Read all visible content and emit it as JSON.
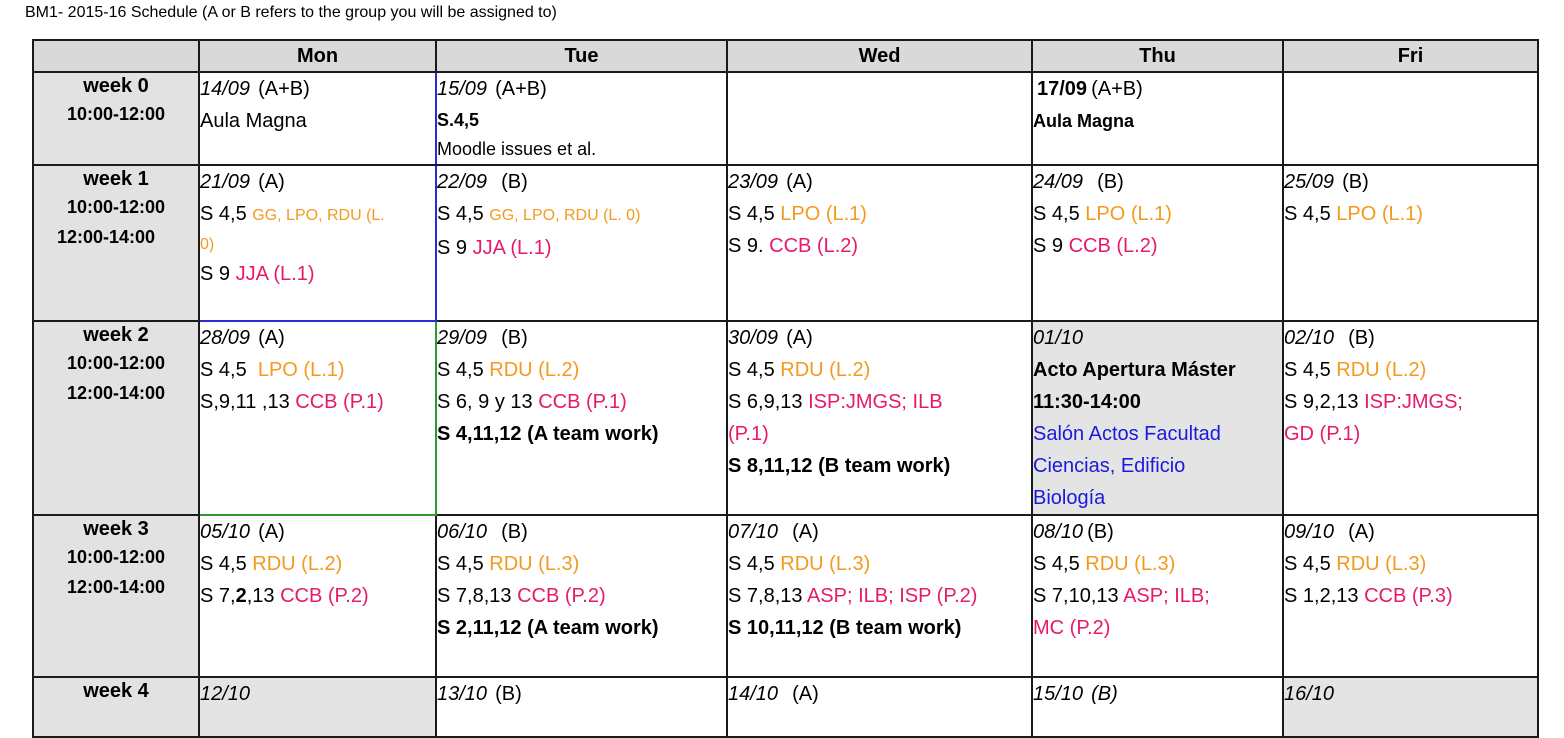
{
  "title": "BM1- 2015-16 Schedule (A or B refers to the group you will be assigned to)",
  "days": [
    "Mon",
    "Tue",
    "Wed",
    "Thu",
    "Fri"
  ],
  "weeks": [
    {
      "label": "week 0",
      "times": [
        "10:00-12:00"
      ],
      "mon": {
        "date": "14/09",
        "group": "(A+B)",
        "place": "Aula Magna"
      },
      "tue": {
        "date": "15/09",
        "group": "(A+B)",
        "room": "S.4,5",
        "note": "Moodle issues et al."
      },
      "thu": {
        "date": "17/09",
        "group": "(A+B)",
        "place": "Aula Magna"
      }
    },
    {
      "label": "week 1",
      "times": [
        "10:00-12:00",
        "12:00-14:00"
      ],
      "mon": {
        "date": "21/09",
        "group": "(A)",
        "r1": "S 4,5",
        "l1": "GG, LPO, RDU (L.",
        "l1b": "0)",
        "r2": "S 9",
        "l2": "JJA (L.1)"
      },
      "tue": {
        "date": "22/09",
        "group": "(B)",
        "r1": "S 4,5",
        "l1": "GG, LPO, RDU (L. 0)",
        "r2": "S 9",
        "l2": "JJA (L.1)"
      },
      "wed": {
        "date": "23/09",
        "group": "(A)",
        "r1": "S 4,5",
        "l1": "LPO (L.1)",
        "r2": "S 9.",
        "l2": "CCB (L.2)"
      },
      "thu": {
        "date": "24/09",
        "group": "(B)",
        "r1": "S 4,5",
        "l1": "LPO (L.1)",
        "r2": "S 9",
        "l2": "CCB (L.2)"
      },
      "fri": {
        "date": "25/09",
        "group": "(B)",
        "r1": "S 4,5",
        "l1": "LPO (L.1)"
      }
    },
    {
      "label": "week 2",
      "times": [
        "10:00-12:00",
        "12:00-14:00"
      ],
      "mon": {
        "date": "28/09",
        "group": "(A)",
        "r1": "S 4,5",
        "l1": "LPO (L.1)",
        "r2": "S,9,11 ,13",
        "l2": "CCB (P.1)"
      },
      "tue": {
        "date": "29/09",
        "group": "(B)",
        "r1": "S 4,5",
        "l1": "RDU (L.2)",
        "r2": "S 6, 9 y 13",
        "l2": "CCB (P.1)",
        "team": "S 4,11,12 (A team work)"
      },
      "wed": {
        "date": "30/09",
        "group": "(A)",
        "r1": "S 4,5",
        "l1": "RDU (L.2)",
        "r2": "S 6,9,13",
        "l2": "ISP:JMGS; ILB",
        "l2b": "(P.1)",
        "team": "S 8,11,12 (B team work)"
      },
      "thu": {
        "date": "01/10",
        "event": "Acto Apertura Máster",
        "time": "11:30-14:00",
        "place1": "Salón Actos Facultad",
        "place2": "Ciencias, Edificio",
        "place3": "Biología"
      },
      "fri": {
        "date": "02/10",
        "group": "(B)",
        "r1": "S 4,5",
        "l1": "RDU (L.2)",
        "r2": "S 9,2,13",
        "l2": "ISP:JMGS;",
        "l2b": "GD (P.1)"
      }
    },
    {
      "label": "week 3",
      "times": [
        "10:00-12:00",
        "12:00-14:00"
      ],
      "mon": {
        "date": "05/10",
        "group": "(A)",
        "r1": "S 4,5",
        "l1": "RDU (L.2)",
        "r2a": "S 7,",
        "r2b": "2",
        "r2c": ",13",
        "l2": "CCB (P.2)"
      },
      "tue": {
        "date": "06/10",
        "group": "(B)",
        "r1": "S 4,5",
        "l1": "RDU (L.3)",
        "r2": "S 7,8,13",
        "l2": "CCB (P.2)",
        "team": "S 2,11,12 (A team work)"
      },
      "wed": {
        "date": "07/10",
        "group": "(A)",
        "r1": "S 4,5",
        "l1": "RDU (L.3)",
        "r2": "S 7,8,13",
        "l2": "ASP; ILB; ISP (P.2)",
        "team": "S 10,11,12 (B team work)"
      },
      "thu": {
        "date": "08/10",
        "group": "(B)",
        "r1": "S 4,5",
        "l1": "RDU (L.3)",
        "r2": "S 7,10,13",
        "l2": "ASP; ILB;",
        "l2b": "MC (P.2)"
      },
      "fri": {
        "date": "09/10",
        "group": "(A)",
        "r1": "S 4,5",
        "l1": "RDU (L.3)",
        "r2": "S 1,2,13",
        "l2": "CCB (P.3)"
      }
    },
    {
      "label": "week 4",
      "mon": {
        "date": "12/10"
      },
      "tue": {
        "date": "13/10",
        "group": "(B)"
      },
      "wed": {
        "date": "14/10",
        "group": "(A)"
      },
      "thu": {
        "date": "15/10",
        "group": "(B)"
      },
      "fri": {
        "date": "16/10"
      }
    }
  ],
  "colors": {
    "lab": "#f39a1e",
    "practice": "#e6196b",
    "event": "#1a1adc",
    "header": "#d9d9d9",
    "shaded": "#e4e4e4"
  }
}
